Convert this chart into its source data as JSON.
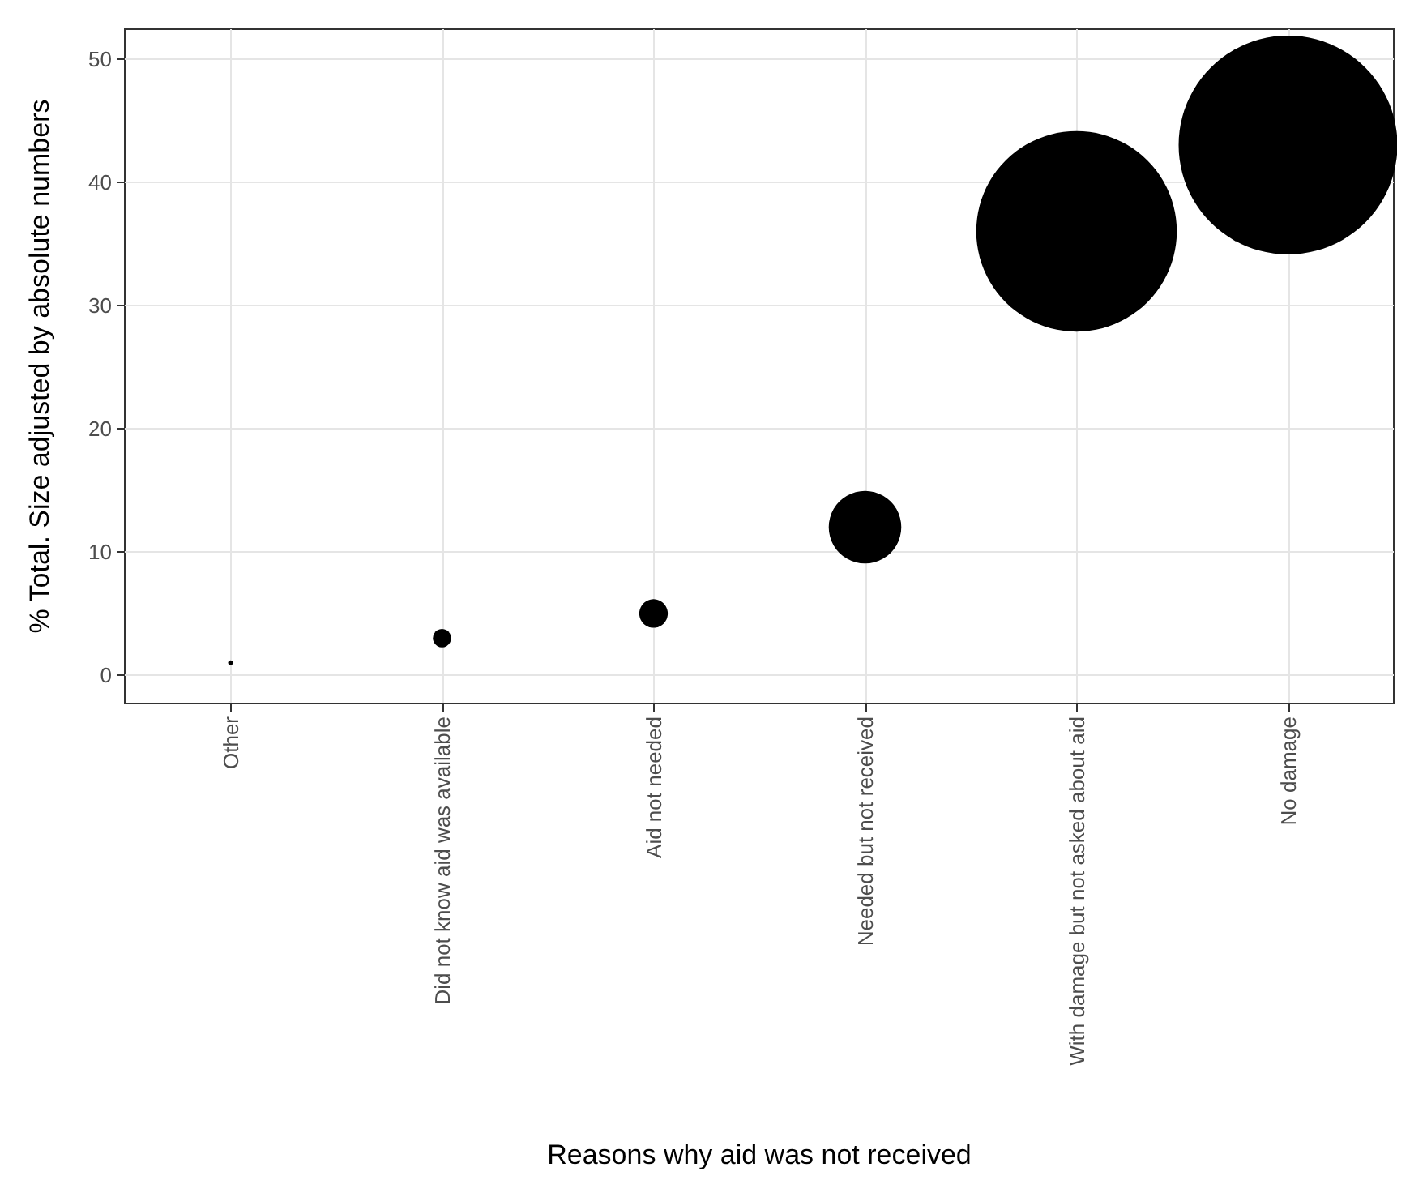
{
  "chart_data": {
    "type": "bubble",
    "xlabel": "Reasons why aid was not received",
    "ylabel": "% Total. Size adjusted by absolute numbers",
    "categories": [
      "Other",
      "Did not know aid was available",
      "Aid not needed",
      "Needed but not received",
      "With damage but not asked about aid",
      "No damage"
    ],
    "values": [
      1,
      3,
      5,
      12,
      36,
      43
    ],
    "sizes": [
      0.0005,
      0.007,
      0.017,
      0.11,
      0.84,
      1
    ],
    "color": "#000000",
    "ylim": [
      -2.3,
      52.4
    ],
    "yticks": [
      0,
      10,
      20,
      30,
      40,
      50
    ],
    "grid": true
  }
}
